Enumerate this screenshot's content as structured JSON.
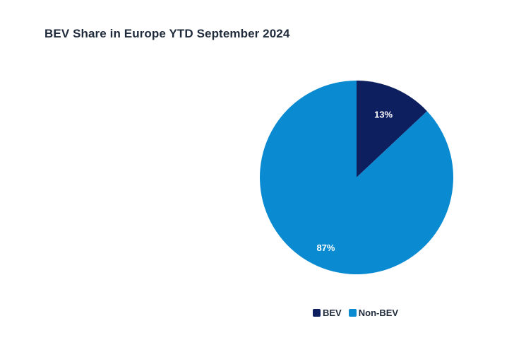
{
  "chart_data": {
    "type": "pie",
    "title": "BEV Share in Europe YTD September 2024",
    "slices": [
      {
        "label": "BEV",
        "value": 13,
        "display": "13%",
        "color": "#0e1f5f"
      },
      {
        "label": "Non-BEV",
        "value": 87,
        "display": "87%",
        "color": "#0a8bd1"
      }
    ],
    "legend_position": "bottom",
    "legend": [
      "BEV",
      "Non-BEV"
    ]
  }
}
